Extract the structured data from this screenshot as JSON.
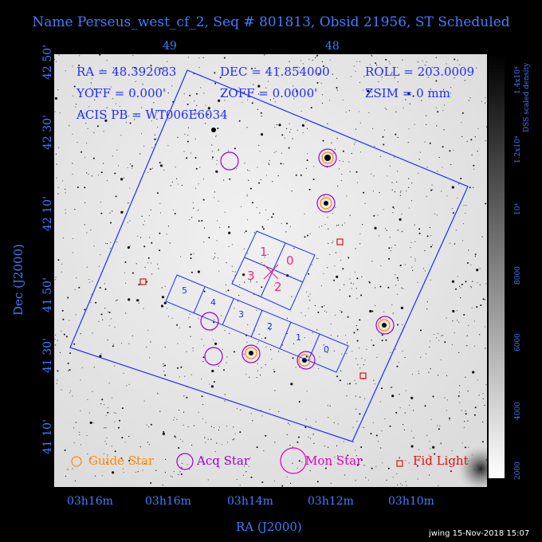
{
  "title": "Name Perseus_west_cf_2, Seq # 801813, Obsid 21956, ST Scheduled",
  "info": {
    "ra": "RA = 48.392083",
    "dec": "DEC = 41.854000",
    "roll": "ROLL = 203.0009",
    "yoff": "YOFF =   0.000'",
    "zoff": "ZOFF =  0.0000'",
    "zsim": "ZSIM = 0 mm",
    "acis": "ACIS PB = WT006E6034"
  },
  "axes": {
    "top_ticks": [
      "49",
      "48"
    ],
    "bottom_ticks": [
      "03h16m",
      "03h16m",
      "03h14m",
      "03h12m",
      "03h10m"
    ],
    "left_ticks": [
      "42 50'",
      "42 30'",
      "42 10'",
      "41 50'",
      "41 30'",
      "41 10'"
    ],
    "xlabel": "RA (J2000)",
    "ylabel": "Dec (J2000)"
  },
  "colorbar": {
    "labels": [
      "2000",
      "4000",
      "6000",
      "8000",
      "10⁴",
      "1.2x10⁴",
      "1.4x10⁴"
    ],
    "title": "DSS scaled density"
  },
  "chips": {
    "imaging": [
      "1",
      "0",
      "3",
      "2"
    ],
    "spectro": [
      "5",
      "4",
      "3",
      "2",
      "1",
      "0"
    ]
  },
  "legend": {
    "guide": "Guide Star",
    "acq": "Acq Star",
    "mon": "Mon Star",
    "fid": "Fid Light"
  },
  "footer": "jwing 15-Nov-2018 15:07",
  "colors": {
    "blue": "#1f2dff",
    "guide": "#ff8800",
    "acq": "#9a00d8",
    "mon": "#e000c0",
    "fid": "#e01010",
    "chip_label": "#ff2080"
  }
}
